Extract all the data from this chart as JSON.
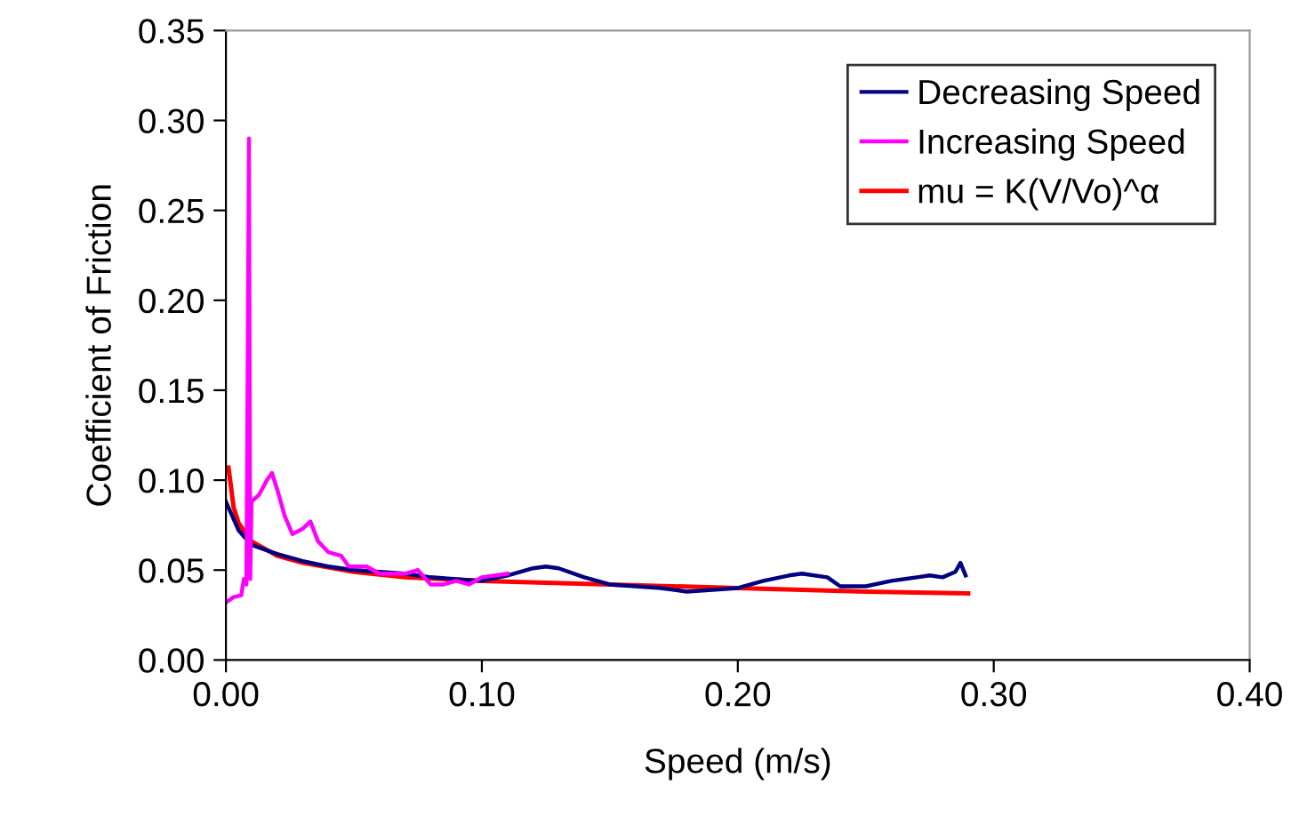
{
  "chart_data": {
    "type": "line",
    "xlabel": "Speed (m/s)",
    "ylabel": "Coefficient of Friction",
    "xlim": [
      0,
      0.4
    ],
    "ylim": [
      0,
      0.35
    ],
    "xticks": [
      {
        "value": 0,
        "label": "0.00"
      },
      {
        "value": 0.1,
        "label": "0.10"
      },
      {
        "value": 0.2,
        "label": "0.20"
      },
      {
        "value": 0.3,
        "label": "0.30"
      },
      {
        "value": 0.4,
        "label": "0.40"
      }
    ],
    "yticks": [
      {
        "value": 0,
        "label": "0.00"
      },
      {
        "value": 0.05,
        "label": "0.05"
      },
      {
        "value": 0.1,
        "label": "0.10"
      },
      {
        "value": 0.15,
        "label": "0.15"
      },
      {
        "value": 0.2,
        "label": "0.20"
      },
      {
        "value": 0.25,
        "label": "0.25"
      },
      {
        "value": 0.3,
        "label": "0.30"
      },
      {
        "value": 0.35,
        "label": "0.35"
      }
    ],
    "grid": false,
    "legend": "top right",
    "marker": "none",
    "line_style": "solid",
    "series": [
      {
        "name": "Decreasing Speed",
        "color": "#000080",
        "x": [
          0.0,
          0.005,
          0.01,
          0.02,
          0.03,
          0.04,
          0.05,
          0.06,
          0.07,
          0.08,
          0.09,
          0.1,
          0.11,
          0.12,
          0.125,
          0.13,
          0.14,
          0.15,
          0.16,
          0.17,
          0.18,
          0.19,
          0.2,
          0.21,
          0.22,
          0.225,
          0.235,
          0.24,
          0.25,
          0.26,
          0.27,
          0.275,
          0.28,
          0.285,
          0.287,
          0.289
        ],
        "values": [
          0.088,
          0.072,
          0.064,
          0.059,
          0.055,
          0.052,
          0.05,
          0.049,
          0.048,
          0.046,
          0.045,
          0.044,
          0.047,
          0.051,
          0.052,
          0.051,
          0.046,
          0.042,
          0.041,
          0.04,
          0.038,
          0.039,
          0.04,
          0.044,
          0.047,
          0.048,
          0.046,
          0.041,
          0.041,
          0.044,
          0.046,
          0.047,
          0.046,
          0.049,
          0.054,
          0.047
        ]
      },
      {
        "name": "Increasing Speed",
        "color": "#ff00ff",
        "x": [
          0.0,
          0.003,
          0.006,
          0.007,
          0.008,
          0.009,
          0.0095,
          0.01,
          0.013,
          0.016,
          0.018,
          0.02,
          0.023,
          0.026,
          0.03,
          0.033,
          0.036,
          0.04,
          0.045,
          0.048,
          0.055,
          0.06,
          0.07,
          0.075,
          0.08,
          0.085,
          0.09,
          0.095,
          0.1,
          0.11
        ],
        "values": [
          0.032,
          0.035,
          0.036,
          0.045,
          0.042,
          0.29,
          0.045,
          0.088,
          0.092,
          0.1,
          0.104,
          0.095,
          0.08,
          0.07,
          0.073,
          0.077,
          0.066,
          0.06,
          0.058,
          0.052,
          0.052,
          0.048,
          0.048,
          0.05,
          0.042,
          0.042,
          0.044,
          0.042,
          0.046,
          0.048
        ]
      },
      {
        "name": "mu = K(V/Vo)^α",
        "color": "#ff0000",
        "x": [
          0.001,
          0.003,
          0.005,
          0.01,
          0.02,
          0.03,
          0.05,
          0.07,
          0.1,
          0.15,
          0.2,
          0.25,
          0.29
        ],
        "values": [
          0.107,
          0.085,
          0.076,
          0.066,
          0.058,
          0.054,
          0.049,
          0.046,
          0.044,
          0.042,
          0.04,
          0.038,
          0.037
        ]
      }
    ]
  }
}
